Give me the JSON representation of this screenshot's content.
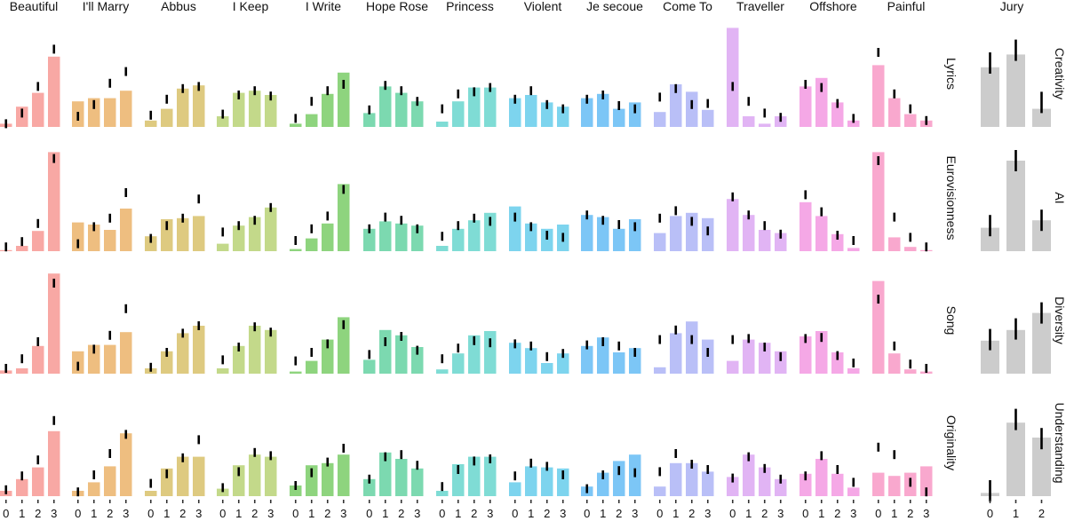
{
  "chart_data": {
    "type": "bar",
    "title": "",
    "xlabel": "",
    "ylabel": "",
    "x_levels": [
      "0",
      "1",
      "2",
      "3"
    ],
    "ylim": [
      0,
      1
    ],
    "error_bars": "short black vertical segments (approximate centers, offset from bars)",
    "main_panel": {
      "rows": [
        "Lyrics",
        "Eurovisionness",
        "Song",
        "Originality"
      ],
      "songs": [
        {
          "name": "Beautiful",
          "color": "#F8A8A4",
          "values": [
            [
              0.03,
              0.19,
              0.32,
              0.66
            ],
            [
              0.01,
              0.05,
              0.19,
              0.93
            ],
            [
              0.03,
              0.05,
              0.26,
              0.94
            ],
            [
              0.05,
              0.16,
              0.27,
              0.61
            ]
          ],
          "err": [
            [
              0.03,
              0.13,
              0.38,
              0.73
            ],
            [
              0.04,
              0.09,
              0.26,
              0.87
            ],
            [
              0.05,
              0.14,
              0.3,
              0.85
            ],
            [
              0.06,
              0.19,
              0.34,
              0.71
            ]
          ]
        },
        {
          "name": "I'll Marry",
          "color": "#EEBE80",
          "values": [
            [
              0.24,
              0.27,
              0.27,
              0.34
            ],
            [
              0.27,
              0.25,
              0.2,
              0.4
            ],
            [
              0.21,
              0.27,
              0.27,
              0.39
            ],
            [
              0.05,
              0.13,
              0.28,
              0.59
            ]
          ],
          "err": [
            [
              0.1,
              0.21,
              0.41,
              0.52
            ],
            [
              0.07,
              0.23,
              0.31,
              0.55
            ],
            [
              0.07,
              0.23,
              0.36,
              0.61
            ],
            [
              0.04,
              0.2,
              0.4,
              0.58
            ]
          ]
        },
        {
          "name": "Abbus",
          "color": "#DECA80",
          "values": [
            [
              0.06,
              0.17,
              0.36,
              0.39
            ],
            [
              0.14,
              0.3,
              0.31,
              0.33
            ],
            [
              0.05,
              0.21,
              0.38,
              0.45
            ],
            [
              0.05,
              0.26,
              0.37,
              0.37
            ]
          ],
          "err": [
            [
              0.11,
              0.26,
              0.36,
              0.38
            ],
            [
              0.12,
              0.24,
              0.31,
              0.49
            ],
            [
              0.06,
              0.2,
              0.38,
              0.45
            ],
            [
              0.12,
              0.21,
              0.36,
              0.53
            ]
          ]
        },
        {
          "name": "I Keep",
          "color": "#C3D98A",
          "values": [
            [
              0.1,
              0.32,
              0.34,
              0.3
            ],
            [
              0.07,
              0.24,
              0.32,
              0.41
            ],
            [
              0.05,
              0.26,
              0.45,
              0.41
            ],
            [
              0.07,
              0.29,
              0.39,
              0.37
            ]
          ],
          "err": [
            [
              0.12,
              0.3,
              0.34,
              0.29
            ],
            [
              0.18,
              0.24,
              0.29,
              0.41
            ],
            [
              0.13,
              0.25,
              0.44,
              0.39
            ],
            [
              0.08,
              0.23,
              0.41,
              0.38
            ]
          ]
        },
        {
          "name": "I Write",
          "color": "#8ED47E",
          "values": [
            [
              0.03,
              0.12,
              0.31,
              0.51
            ],
            [
              0.02,
              0.12,
              0.26,
              0.63
            ],
            [
              0.02,
              0.12,
              0.32,
              0.53
            ],
            [
              0.1,
              0.29,
              0.31,
              0.39
            ]
          ],
          "err": [
            [
              0.08,
              0.24,
              0.34,
              0.4
            ],
            [
              0.1,
              0.21,
              0.33,
              0.58
            ],
            [
              0.12,
              0.2,
              0.28,
              0.46
            ],
            [
              0.1,
              0.22,
              0.32,
              0.45
            ]
          ]
        },
        {
          "name": "Hope Rose",
          "color": "#7CD9B0",
          "values": [
            [
              0.13,
              0.38,
              0.32,
              0.24
            ],
            [
              0.21,
              0.28,
              0.26,
              0.24
            ],
            [
              0.13,
              0.41,
              0.36,
              0.25
            ],
            [
              0.16,
              0.41,
              0.35,
              0.26
            ]
          ],
          "err": [
            [
              0.16,
              0.39,
              0.34,
              0.24
            ],
            [
              0.21,
              0.32,
              0.29,
              0.21
            ],
            [
              0.18,
              0.3,
              0.35,
              0.22
            ],
            [
              0.16,
              0.37,
              0.39,
              0.29
            ]
          ]
        },
        {
          "name": "Princess",
          "color": "#7FDCD5",
          "values": [
            [
              0.05,
              0.24,
              0.37,
              0.37
            ],
            [
              0.05,
              0.21,
              0.29,
              0.36
            ],
            [
              0.04,
              0.19,
              0.36,
              0.4
            ],
            [
              0.05,
              0.3,
              0.37,
              0.37
            ]
          ],
          "err": [
            [
              0.17,
              0.31,
              0.33,
              0.37
            ],
            [
              0.14,
              0.24,
              0.31,
              0.28
            ],
            [
              0.14,
              0.24,
              0.31,
              0.29
            ],
            [
              0.09,
              0.25,
              0.33,
              0.35
            ]
          ]
        },
        {
          "name": "Violent",
          "color": "#7DD4EE",
          "values": [
            [
              0.27,
              0.3,
              0.23,
              0.19
            ],
            [
              0.42,
              0.26,
              0.21,
              0.25
            ],
            [
              0.29,
              0.24,
              0.1,
              0.19
            ],
            [
              0.13,
              0.28,
              0.27,
              0.26
            ]
          ],
          "err": [
            [
              0.26,
              0.34,
              0.21,
              0.17
            ],
            [
              0.32,
              0.23,
              0.15,
              0.13
            ],
            [
              0.28,
              0.26,
              0.16,
              0.19
            ],
            [
              0.19,
              0.31,
              0.28,
              0.2
            ]
          ]
        },
        {
          "name": "Je secoue",
          "color": "#7CC6F6",
          "values": [
            [
              0.27,
              0.31,
              0.17,
              0.23
            ],
            [
              0.34,
              0.32,
              0.21,
              0.3
            ],
            [
              0.26,
              0.34,
              0.2,
              0.24
            ],
            [
              0.09,
              0.22,
              0.33,
              0.39
            ]
          ],
          "err": [
            [
              0.26,
              0.3,
              0.2,
              0.17
            ],
            [
              0.34,
              0.29,
              0.25,
              0.23
            ],
            [
              0.27,
              0.3,
              0.26,
              0.2
            ],
            [
              0.07,
              0.2,
              0.24,
              0.22
            ]
          ]
        },
        {
          "name": "Come To",
          "color": "#B9BFF7",
          "values": [
            [
              0.14,
              0.4,
              0.33,
              0.16
            ],
            [
              0.17,
              0.33,
              0.36,
              0.31
            ],
            [
              0.06,
              0.38,
              0.49,
              0.32
            ],
            [
              0.09,
              0.31,
              0.31,
              0.23
            ]
          ],
          "err": [
            [
              0.28,
              0.36,
              0.21,
              0.22
            ],
            [
              0.31,
              0.38,
              0.28,
              0.19
            ],
            [
              0.32,
              0.41,
              0.32,
              0.2
            ],
            [
              0.23,
              0.4,
              0.3,
              0.25
            ]
          ]
        },
        {
          "name": "Traveller",
          "color": "#E1B4F4",
          "values": [
            [
              0.93,
              0.1,
              0.03,
              0.1
            ],
            [
              0.49,
              0.34,
              0.2,
              0.17
            ],
            [
              0.12,
              0.32,
              0.29,
              0.21
            ],
            [
              0.18,
              0.39,
              0.27,
              0.16
            ]
          ],
          "err": [
            [
              0.38,
              0.24,
              0.13,
              0.09
            ],
            [
              0.51,
              0.34,
              0.24,
              0.16
            ],
            [
              0.32,
              0.33,
              0.25,
              0.16
            ],
            [
              0.17,
              0.37,
              0.26,
              0.16
            ]
          ]
        },
        {
          "name": "Offshore",
          "color": "#F5A8E6",
          "values": [
            [
              0.38,
              0.46,
              0.23,
              0.06
            ],
            [
              0.46,
              0.33,
              0.16,
              0.03
            ],
            [
              0.35,
              0.4,
              0.2,
              0.05
            ],
            [
              0.21,
              0.35,
              0.21,
              0.08
            ]
          ],
          "err": [
            [
              0.4,
              0.37,
              0.22,
              0.08
            ],
            [
              0.53,
              0.37,
              0.15,
              0.1
            ],
            [
              0.33,
              0.34,
              0.17,
              0.1
            ],
            [
              0.19,
              0.38,
              0.25,
              0.13
            ]
          ]
        },
        {
          "name": "Painful",
          "color": "#F9A8CE",
          "values": [
            [
              0.58,
              0.27,
              0.12,
              0.06
            ],
            [
              0.93,
              0.13,
              0.04,
              0.01
            ],
            [
              0.87,
              0.19,
              0.04,
              0.02
            ],
            [
              0.22,
              0.19,
              0.22,
              0.28
            ]
          ],
          "err": [
            [
              0.7,
              0.31,
              0.17,
              0.06
            ],
            [
              0.85,
              0.32,
              0.13,
              0.04
            ],
            [
              0.7,
              0.26,
              0.09,
              0.05
            ],
            [
              0.46,
              0.39,
              0.13,
              0.04
            ]
          ]
        }
      ]
    },
    "jury_panel": {
      "title": "Jury",
      "x_levels": [
        "0",
        "1",
        "2"
      ],
      "color": "#CCCCCC",
      "rows": [
        "Creativity",
        "AI",
        "Diversity",
        "Understanding"
      ],
      "values": [
        [
          0.56,
          0.68,
          0.17
        ],
        [
          0.22,
          0.85,
          0.29
        ],
        [
          0.31,
          0.41,
          0.57
        ],
        [
          0.03,
          0.69,
          0.55
        ]
      ],
      "err": [
        [
          0.6,
          0.72,
          0.23
        ],
        [
          0.24,
          0.85,
          0.29
        ],
        [
          0.32,
          0.42,
          0.57
        ],
        [
          0.05,
          0.72,
          0.54
        ]
      ]
    }
  }
}
